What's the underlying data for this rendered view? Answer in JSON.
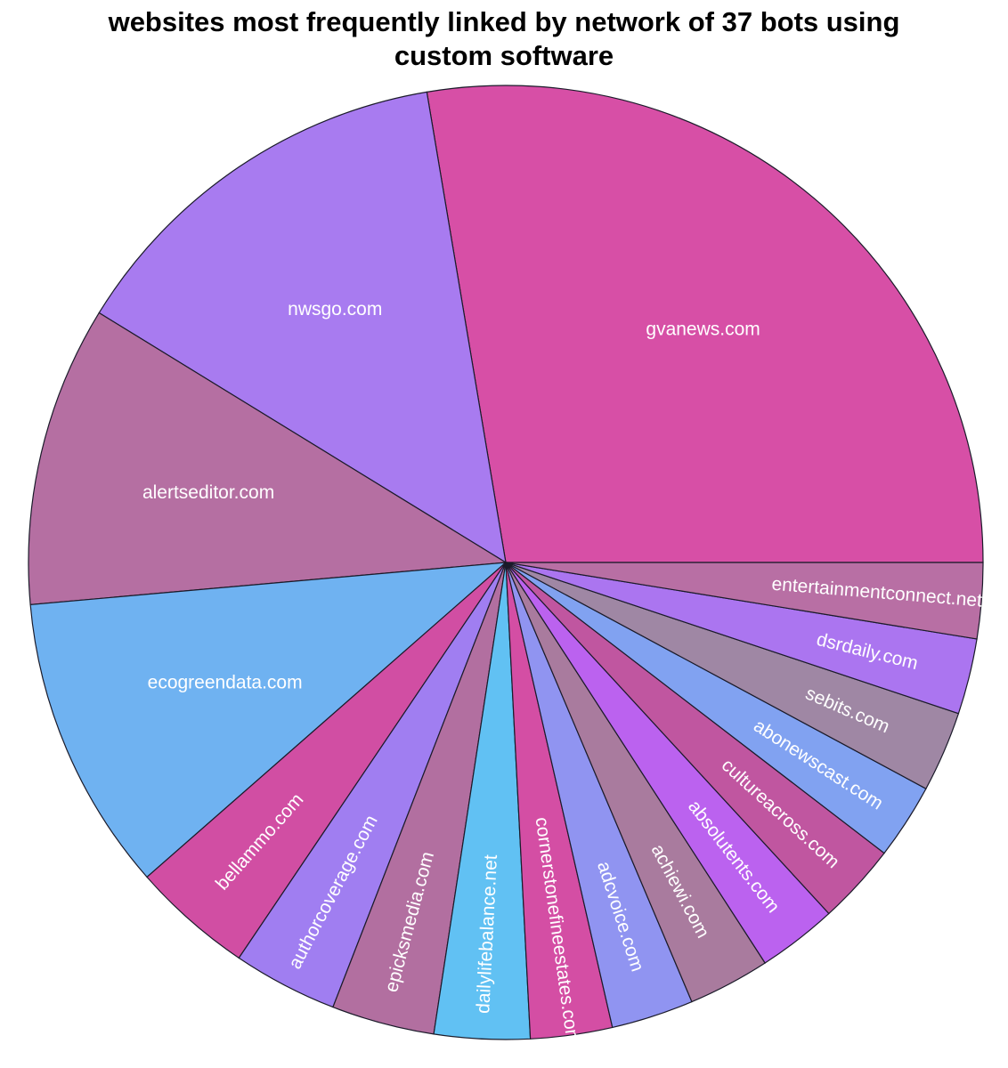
{
  "chart_data": {
    "type": "pie",
    "title_lines": [
      "websites most frequently linked by network of 37 bots using",
      "custom software"
    ],
    "start_angle_deg": 0,
    "direction": "counterclockwise",
    "slices": [
      {
        "label": "gvanews.com",
        "value": 27.28,
        "color": "#d74fa6"
      },
      {
        "label": "nwsgo.com",
        "value": 13.41,
        "color": "#a87bf0"
      },
      {
        "label": "alertseditor.com",
        "value": 10.04,
        "color": "#b56fa2"
      },
      {
        "label": "ecogreendata.com",
        "value": 9.92,
        "color": "#6fb2f1"
      },
      {
        "label": "bellammo.com",
        "value": 4.04,
        "color": "#d14ea3"
      },
      {
        "label": "authorcoverage.com",
        "value": 3.5,
        "color": "#a07ef1"
      },
      {
        "label": "epicksmedia.com",
        "value": 3.44,
        "color": "#b26fa0"
      },
      {
        "label": "dailylifebalance.net",
        "value": 3.19,
        "color": "#61c1f3"
      },
      {
        "label": "cornerstonefineestates.com",
        "value": 2.73,
        "color": "#d44ea4"
      },
      {
        "label": "adcvoice.com",
        "value": 2.75,
        "color": "#9094f1"
      },
      {
        "label": "achiewi.com",
        "value": 2.73,
        "color": "#a97b9e"
      },
      {
        "label": "absolutents.com",
        "value": 2.66,
        "color": "#bb62ef"
      },
      {
        "label": "cultureacross.com",
        "value": 2.7,
        "color": "#c056a0"
      },
      {
        "label": "abonewscast.com",
        "value": 2.53,
        "color": "#81a2f1"
      },
      {
        "label": "sebits.com",
        "value": 2.7,
        "color": "#9f87a4"
      },
      {
        "label": "dsrdaily.com",
        "value": 2.53,
        "color": "#ab75f0"
      },
      {
        "label": "entertainmentconnect.net",
        "value": 2.53,
        "color": "#b86fa4"
      }
    ]
  }
}
